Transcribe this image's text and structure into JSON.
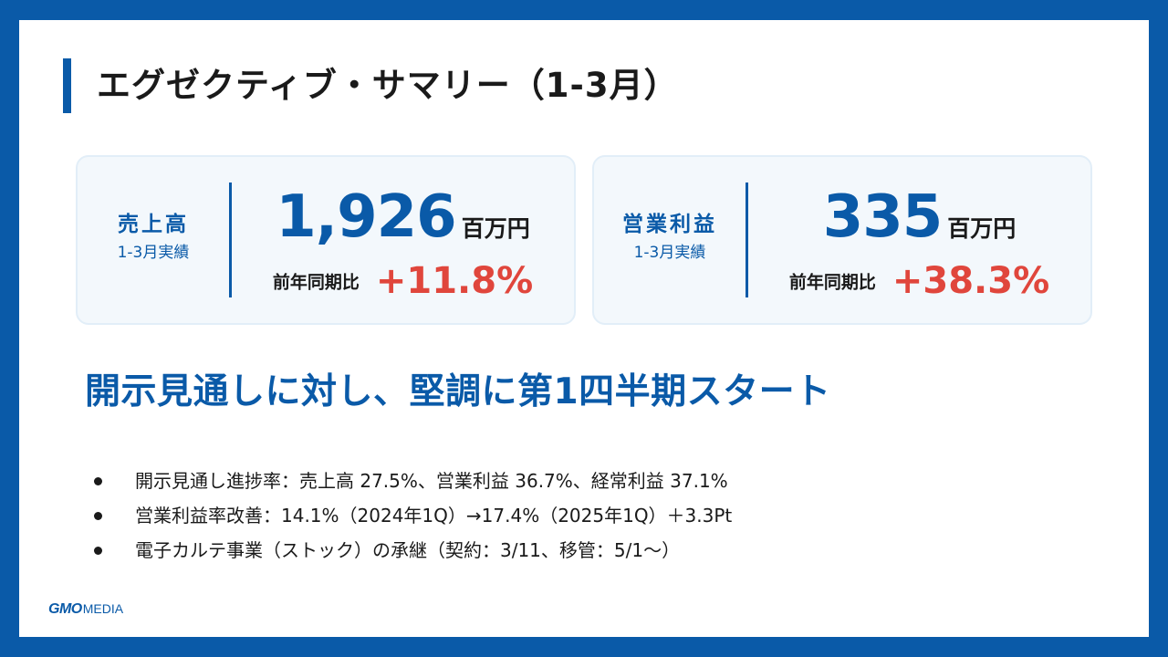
{
  "title": "エグゼクティブ・サマリー（1-3月）",
  "cards": [
    {
      "label": "売上高",
      "sublabel": "1-3月実績",
      "value": "1,926",
      "unit": "百万円",
      "yoy_label": "前年同期比",
      "yoy_value": "+11.8%"
    },
    {
      "label": "営業利益",
      "sublabel": "1-3月実績",
      "value": "335",
      "unit": "百万円",
      "yoy_label": "前年同期比",
      "yoy_value": "+38.3%"
    }
  ],
  "headline": "開示見通しに対し、堅調に第1四半期スタート",
  "bullets": [
    "開示見通し進捗率：売上高 27.5%、営業利益 36.7%、経常利益 37.1%",
    "営業利益率改善：14.1%（2024年1Q）→17.4%（2025年1Q）＋3.3Pt",
    "電子カルテ事業（ストック）の承継（契約：3/11、移管：5/1～）"
  ],
  "logo": {
    "brand": "GMO",
    "suffix": "MEDIA"
  },
  "colors": {
    "brand_blue": "#0a5aa8",
    "accent_red": "#e0463c",
    "card_bg": "#f3f8fc"
  }
}
